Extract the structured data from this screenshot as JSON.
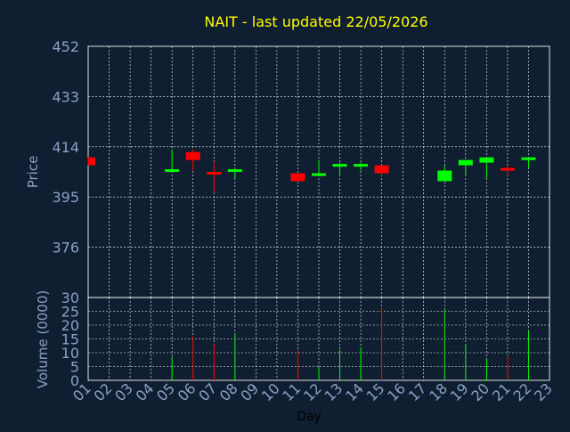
{
  "chart_data": {
    "type": "candlestick",
    "title": "NAIT - last updated 22/05/2026",
    "xlabel": "Day",
    "colors": {
      "background": "#0f1e30",
      "title": "#ffff00",
      "axis_text": "#8aa2c6",
      "xlabel": "#000000",
      "grid": "#ffffff",
      "up": "#00ff00",
      "down": "#ff0000"
    },
    "price_panel": {
      "ylabel": "Price",
      "ylim": [
        357,
        452
      ],
      "yticks": [
        "452",
        "433",
        "414",
        "395",
        "376"
      ],
      "ytick_values": [
        452,
        433,
        414,
        395,
        376
      ],
      "grid": true
    },
    "volume_panel": {
      "ylabel": "Volume (0000)",
      "ylim": [
        0,
        30
      ],
      "yticks": [
        "30",
        "25",
        "20",
        "15",
        "10",
        "5",
        "0"
      ],
      "ytick_values": [
        30,
        25,
        20,
        15,
        10,
        5,
        0
      ],
      "grid": true
    },
    "x_ticks": [
      "01",
      "02",
      "03",
      "04",
      "05",
      "06",
      "07",
      "08",
      "09",
      "10",
      "11",
      "12",
      "13",
      "14",
      "15",
      "16",
      "17",
      "18",
      "19",
      "20",
      "21",
      "22",
      "23"
    ],
    "candles": [
      {
        "day": 1,
        "open": 410,
        "close": 407,
        "high": 410,
        "low": 407,
        "volume": null,
        "dir": "down"
      },
      {
        "day": 5,
        "open": 405,
        "close": 405.5,
        "high": 413,
        "low": 405,
        "volume": 8.5,
        "dir": "up"
      },
      {
        "day": 6,
        "open": 412,
        "close": 409,
        "high": 413,
        "low": 405,
        "volume": 16,
        "dir": "down"
      },
      {
        "day": 7,
        "open": 404.5,
        "close": 403.5,
        "high": 408,
        "low": 397,
        "volume": 13,
        "dir": "down"
      },
      {
        "day": 8,
        "open": 405,
        "close": 405.5,
        "high": 406,
        "low": 402,
        "volume": 17,
        "dir": "up"
      },
      {
        "day": 11,
        "open": 404,
        "close": 401,
        "high": 404,
        "low": 401,
        "volume": 11,
        "dir": "down"
      },
      {
        "day": 12,
        "open": 403,
        "close": 404,
        "high": 409,
        "low": 403,
        "volume": 5,
        "dir": "up"
      },
      {
        "day": 13,
        "open": 407,
        "close": 407.5,
        "high": 408,
        "low": 403,
        "volume": 11,
        "dir": "up"
      },
      {
        "day": 14,
        "open": 407,
        "close": 407.5,
        "high": 408,
        "low": 405,
        "volume": 12,
        "dir": "up"
      },
      {
        "day": 15,
        "open": 407,
        "close": 404,
        "high": 407,
        "low": 403,
        "volume": 26,
        "dir": "down"
      },
      {
        "day": 18,
        "open": 401,
        "close": 405,
        "high": 407,
        "low": 401,
        "volume": 26,
        "dir": "up"
      },
      {
        "day": 19,
        "open": 407,
        "close": 409,
        "high": 409,
        "low": 403,
        "volume": 13,
        "dir": "up"
      },
      {
        "day": 20,
        "open": 408,
        "close": 410,
        "high": 410,
        "low": 402,
        "volume": 8,
        "dir": "up"
      },
      {
        "day": 21,
        "open": 406,
        "close": 405,
        "high": 407,
        "low": 403,
        "volume": 9,
        "dir": "down"
      },
      {
        "day": 22,
        "open": 409,
        "close": 410,
        "high": 410,
        "low": 406,
        "volume": 18,
        "dir": "up"
      }
    ]
  }
}
